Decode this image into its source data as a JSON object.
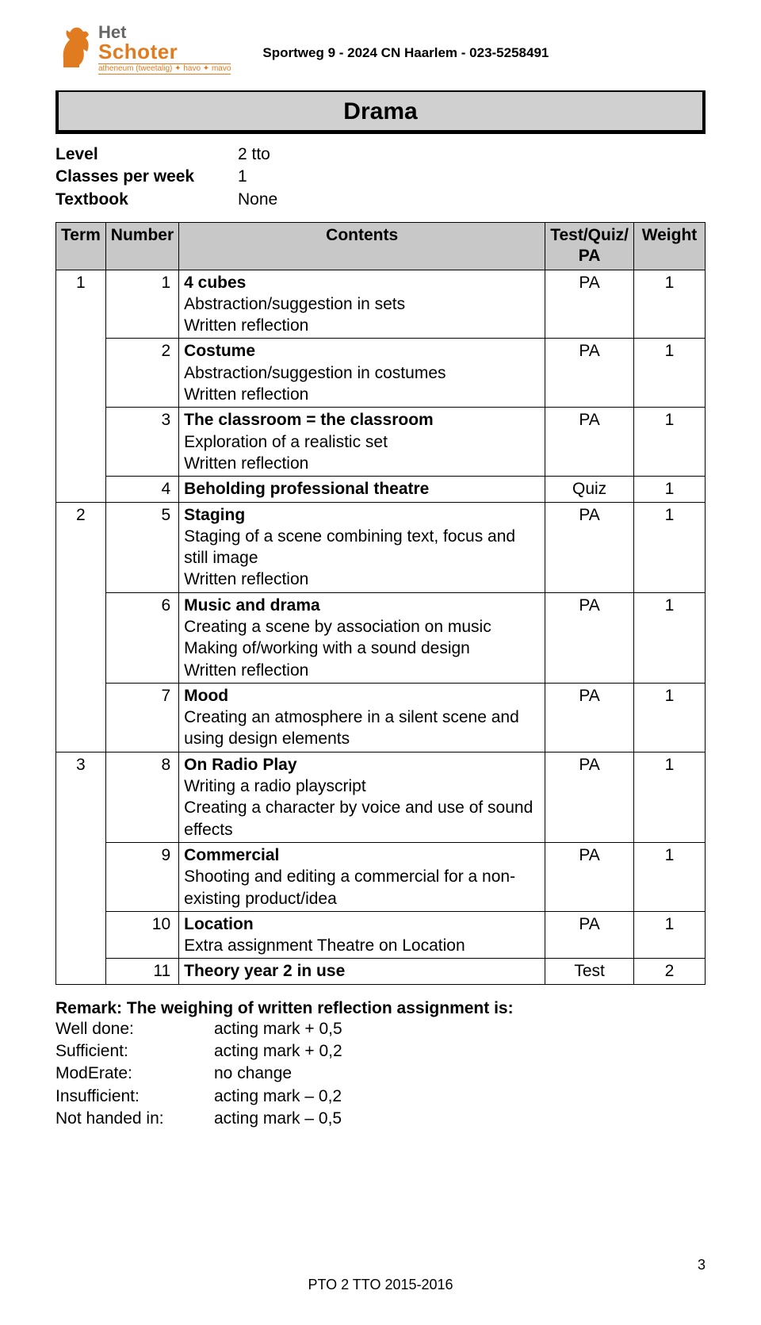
{
  "school": {
    "logo_line1": "Het",
    "logo_line2": "Schoter",
    "logo_sub": "atheneum (tweetalig) ✦ havo ✦ mavo",
    "address": "Sportweg 9 - 2024 CN Haarlem - 023-5258491"
  },
  "title": "Drama",
  "meta": [
    {
      "label": "Level",
      "value": "2 tto"
    },
    {
      "label": "Classes per week",
      "value": "1"
    },
    {
      "label": "Textbook",
      "value": "None"
    }
  ],
  "table": {
    "columns": [
      "Term",
      "Number",
      "Contents",
      "Test/Quiz/\nPA",
      "Weight"
    ],
    "col_widths": [
      "60px",
      "82px",
      "auto",
      "100px",
      "90px"
    ],
    "header_bg": "#c8c8c8",
    "border_color": "#000000",
    "rows": [
      {
        "term": "1",
        "number": "1",
        "title": "4 cubes",
        "desc": "Abstraction/suggestion in sets\nWritten reflection",
        "test": "PA",
        "weight": "1"
      },
      {
        "term": "",
        "number": "2",
        "title": "Costume",
        "desc": "Abstraction/suggestion in costumes\nWritten reflection",
        "test": "PA",
        "weight": "1"
      },
      {
        "term": "",
        "number": "3",
        "title": "The classroom = the classroom",
        "desc": "Exploration of a realistic set\nWritten reflection",
        "test": "PA",
        "weight": "1"
      },
      {
        "term": "",
        "number": "4",
        "title": "Beholding professional theatre",
        "desc": "",
        "test": "Quiz",
        "weight": "1"
      },
      {
        "term": "2",
        "number": "5",
        "title": "Staging",
        "desc": "Staging of a scene combining text, focus and still image\nWritten reflection",
        "test": "PA",
        "weight": "1"
      },
      {
        "term": "",
        "number": "6",
        "title": "Music and drama",
        "desc": "Creating a scene by association on music\nMaking of/working with a sound design\nWritten reflection",
        "test": "PA",
        "weight": "1"
      },
      {
        "term": "",
        "number": "7",
        "title": "Mood",
        "desc": "Creating an atmosphere in a silent scene and using design elements",
        "test": "PA",
        "weight": "1"
      },
      {
        "term": "3",
        "number": "8",
        "title": "On Radio Play",
        "desc": "Writing a radio playscript\nCreating a character by voice and use of sound effects",
        "test": "PA",
        "weight": "1"
      },
      {
        "term": "",
        "number": "9",
        "title": "Commercial",
        "desc": "Shooting and editing a commercial for a non-existing product/idea",
        "test": "PA",
        "weight": "1"
      },
      {
        "term": "",
        "number": "10",
        "title": "Location",
        "desc": "Extra assignment Theatre on Location",
        "test": "PA",
        "weight": "1"
      },
      {
        "term": "",
        "number": "11",
        "title": "Theory year 2 in use",
        "desc": "",
        "test": "Test",
        "weight": "2"
      }
    ],
    "term_spans": {
      "0": 4,
      "4": 3,
      "7": 4
    }
  },
  "remark": {
    "title": "Remark: The weighing of written reflection assignment is:",
    "rows": [
      {
        "label": "Well done:",
        "value": "acting mark + 0,5"
      },
      {
        "label": "Sufficient:",
        "value": "acting mark + 0,2"
      },
      {
        "label": "ModErate:",
        "value": "no change"
      },
      {
        "label": "Insufficient:",
        "value": "acting mark – 0,2"
      },
      {
        "label": "Not handed in:",
        "value": "acting mark – 0,5"
      }
    ]
  },
  "footer": {
    "page": "3",
    "center": "PTO 2 TTO 2015-2016"
  },
  "colors": {
    "accent": "#e07b1f",
    "title_bg": "#d0d0d0",
    "text": "#000000",
    "bg": "#ffffff"
  }
}
